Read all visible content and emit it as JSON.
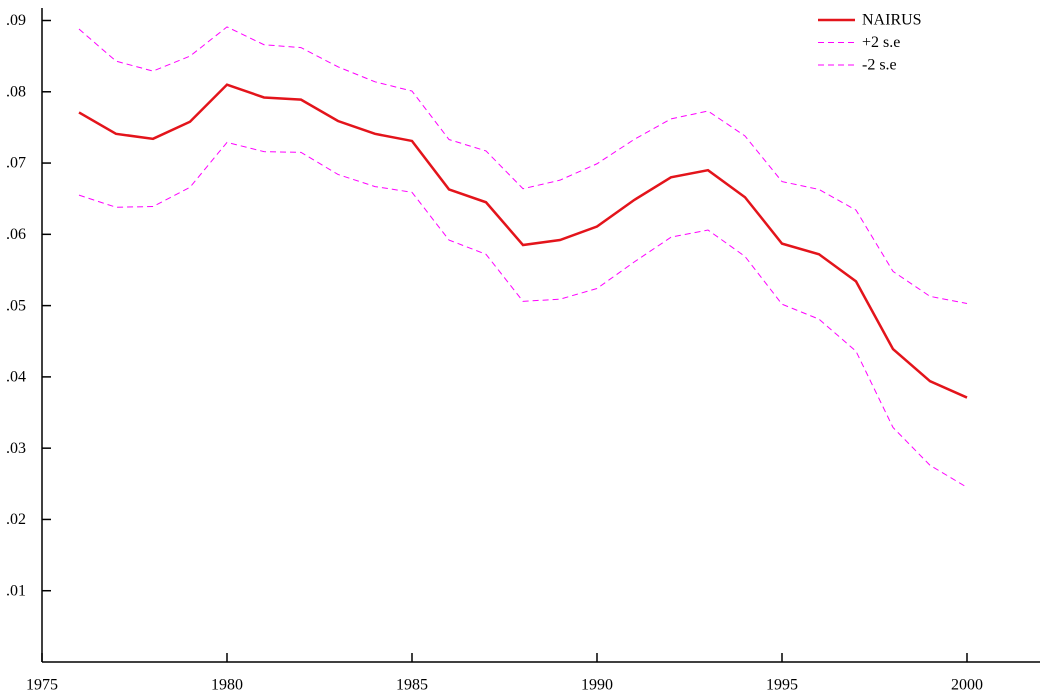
{
  "chart_data": {
    "type": "line",
    "x": [
      1976,
      1977,
      1978,
      1979,
      1980,
      1981,
      1982,
      1983,
      1984,
      1985,
      1986,
      1987,
      1988,
      1989,
      1990,
      1991,
      1992,
      1993,
      1994,
      1995,
      1996,
      1997,
      1998,
      1999,
      2000
    ],
    "series": [
      {
        "name": "NAIRUS",
        "color": "#e3141b",
        "dash": "solid",
        "values": [
          0.0771,
          0.0741,
          0.0734,
          0.0758,
          0.081,
          0.0792,
          0.0789,
          0.0759,
          0.0741,
          0.0731,
          0.0663,
          0.0645,
          0.0585,
          0.0592,
          0.0611,
          0.0648,
          0.068,
          0.069,
          0.0652,
          0.0587,
          0.0572,
          0.0534,
          0.0439,
          0.0394,
          0.0371
        ]
      },
      {
        "name": "+2 s.e",
        "color": "#ff00ff",
        "dash": "dashed",
        "values": [
          0.0888,
          0.0843,
          0.0829,
          0.085,
          0.0891,
          0.0866,
          0.0862,
          0.0835,
          0.0814,
          0.0801,
          0.0733,
          0.0717,
          0.0664,
          0.0676,
          0.0699,
          0.0733,
          0.0762,
          0.0773,
          0.0738,
          0.0674,
          0.0663,
          0.0634,
          0.0548,
          0.0513,
          0.0503
        ]
      },
      {
        "name": "-2 s.e",
        "color": "#ff00ff",
        "dash": "dashed",
        "values": [
          0.0655,
          0.0638,
          0.0639,
          0.0666,
          0.0729,
          0.0716,
          0.0715,
          0.0684,
          0.0667,
          0.0659,
          0.0592,
          0.0572,
          0.0506,
          0.0509,
          0.0524,
          0.0561,
          0.0596,
          0.0606,
          0.0569,
          0.0502,
          0.0481,
          0.0436,
          0.0329,
          0.0276,
          0.0245
        ]
      }
    ],
    "xlim": [
      1975,
      2002
    ],
    "ylim": [
      0,
      0.09
    ],
    "xticks": [
      1975,
      1980,
      1985,
      1990,
      1995,
      2000
    ],
    "yticks": [
      {
        "value": 0.01,
        "label": ".01"
      },
      {
        "value": 0.02,
        "label": ".02"
      },
      {
        "value": 0.03,
        "label": ".03"
      },
      {
        "value": 0.04,
        "label": ".04"
      },
      {
        "value": 0.05,
        "label": ".05"
      },
      {
        "value": 0.06,
        "label": ".06"
      },
      {
        "value": 0.07,
        "label": ".07"
      },
      {
        "value": 0.08,
        "label": ".08"
      },
      {
        "value": 0.09,
        "label": ".09"
      }
    ],
    "legend": "top-right"
  }
}
